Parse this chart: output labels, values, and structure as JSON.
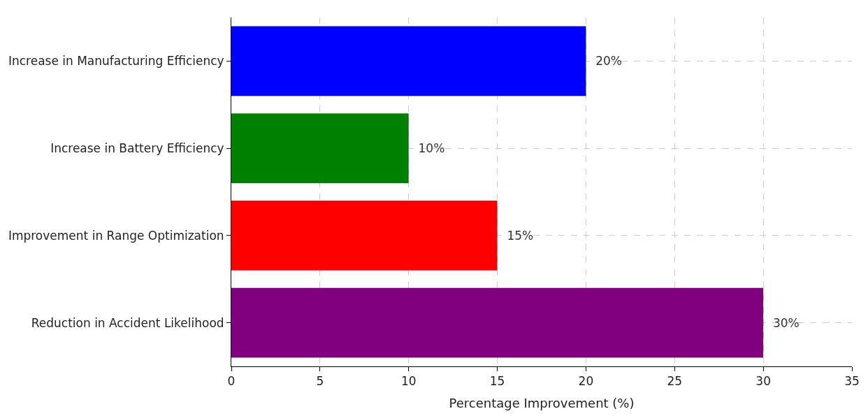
{
  "chart_data": {
    "type": "bar",
    "orientation": "horizontal",
    "xlabel": "Percentage Improvement (%)",
    "categories": [
      "Increase in Manufacturing Efficiency",
      "Increase in Battery Efficiency",
      "Improvement in Range Optimization",
      "Reduction in Accident Likelihood"
    ],
    "values": [
      20,
      10,
      15,
      30
    ],
    "colors": [
      "#0000ff",
      "#008000",
      "#ff0000",
      "#800080"
    ],
    "value_labels": [
      "20%",
      "10%",
      "15%",
      "30%"
    ],
    "xlim": [
      0,
      35
    ],
    "xticks": [
      0,
      5,
      10,
      15,
      20,
      25,
      30,
      35
    ],
    "grid": true
  }
}
